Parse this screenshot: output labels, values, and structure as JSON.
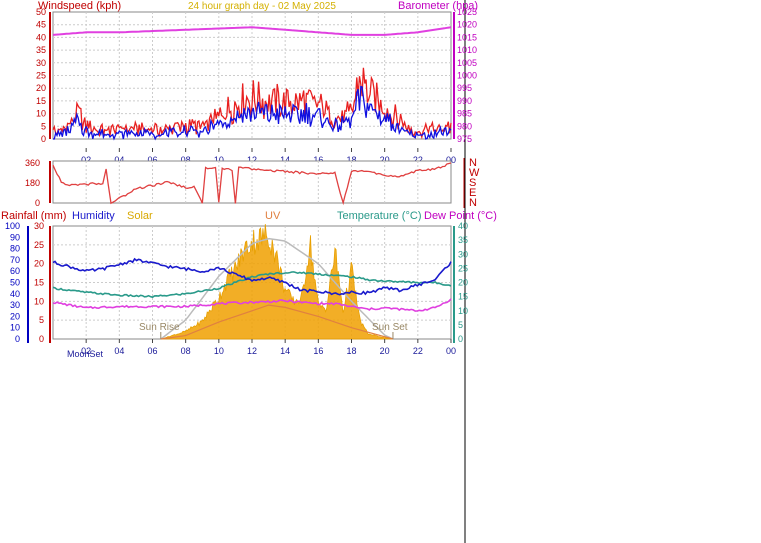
{
  "header": {
    "title": "24 hour graph day - 02 May 2025",
    "left_label": "Windspeed (kph)",
    "right_label": "Barometer (hpa)"
  },
  "colors": {
    "wind": "#e82020",
    "gust_avg": "#1010e0",
    "barometer": "#e040e0",
    "direction": "#e04040",
    "humidity": "#1a1acc",
    "temperature": "#2a9a8a",
    "dewpoint": "#e040e0",
    "solar": "#f0a000",
    "uv": "#e08040",
    "sun_curve": "#bbbbbb",
    "grid": "#cccccc",
    "axis_left": "#c00000",
    "axis_blue": "#0000c0",
    "axis_teal": "#2a9a8a"
  },
  "time_ticks": [
    "02",
    "04",
    "06",
    "08",
    "10",
    "12",
    "14",
    "16",
    "18",
    "20",
    "22",
    "00"
  ],
  "bottom_axis_extra": {
    "moon_set": "MoonSet"
  },
  "chart_data": [
    {
      "name": "wind_barometer",
      "type": "line",
      "xlim": [
        0,
        24
      ],
      "ylim_left": [
        0,
        50
      ],
      "ylim_right": [
        975,
        1025
      ],
      "left_ticks": [
        "50",
        "45",
        "40",
        "35",
        "30",
        "25",
        "20",
        "15",
        "10",
        "5",
        "0"
      ],
      "right_ticks": [
        "1025",
        "1020",
        "1015",
        "1010",
        "1005",
        "1000",
        "995",
        "990",
        "985",
        "980",
        "975"
      ],
      "series": [
        {
          "name": "Windspeed (kph)",
          "x": [
            0,
            1,
            1.5,
            2,
            3,
            4,
            5,
            6,
            7,
            8,
            9,
            10,
            11,
            12,
            13,
            14,
            15,
            16,
            17,
            18,
            18.5,
            19,
            19.5,
            20,
            21,
            21.5,
            22,
            23,
            24
          ],
          "values": [
            3,
            5,
            10,
            5,
            3,
            4,
            4,
            4,
            4,
            5,
            5,
            9,
            14,
            16,
            15,
            14,
            15,
            14,
            8,
            10,
            24,
            18,
            15,
            12,
            7,
            4,
            3,
            4,
            5
          ]
        },
        {
          "name": "Gust (kph)",
          "x": [
            0,
            1,
            1.5,
            2,
            3,
            4,
            5,
            6,
            7,
            8,
            9,
            10,
            11,
            12,
            13,
            14,
            15,
            16,
            17,
            18,
            18.5,
            19,
            19.5,
            20,
            21,
            21.5,
            22,
            23,
            24
          ],
          "values": [
            1,
            3,
            7,
            3,
            2,
            2,
            2,
            2,
            2,
            3,
            3,
            6,
            9,
            10,
            10,
            9,
            10,
            9,
            5,
            7,
            16,
            13,
            10,
            8,
            4,
            2,
            1,
            2,
            3
          ]
        },
        {
          "name": "Barometer (hpa)",
          "x": [
            0,
            2,
            4,
            6,
            8,
            10,
            12,
            14,
            16,
            18,
            20,
            22,
            24
          ],
          "values": [
            1016,
            1017,
            1017,
            1017.5,
            1018,
            1018.5,
            1019,
            1018,
            1017,
            1016,
            1016,
            1017,
            1019
          ]
        }
      ]
    },
    {
      "name": "wind_direction",
      "type": "line",
      "xlim": [
        0,
        24
      ],
      "ylim": [
        0,
        360
      ],
      "left_ticks": [
        "360",
        "180",
        "0"
      ],
      "right_labels": [
        "N",
        "W",
        "S",
        "E",
        "N"
      ],
      "series": [
        {
          "name": "Direction (deg)",
          "x": [
            0,
            0.5,
            1,
            2,
            3,
            3.2,
            3.5,
            5,
            7,
            8,
            8.5,
            9,
            9.2,
            9.8,
            10,
            10.2,
            10.8,
            11,
            11.2,
            11.8,
            12,
            14,
            16,
            17,
            17.2,
            17.5,
            18,
            19,
            20,
            21,
            22,
            23,
            24
          ],
          "values": [
            320,
            180,
            150,
            160,
            170,
            290,
            0,
            120,
            180,
            130,
            140,
            0,
            300,
            300,
            0,
            300,
            280,
            0,
            310,
            300,
            290,
            270,
            250,
            260,
            150,
            0,
            270,
            270,
            240,
            230,
            280,
            290,
            340
          ]
        }
      ]
    },
    {
      "name": "temp_humidity_solar",
      "type": "area",
      "xlim": [
        0,
        24
      ],
      "rainfall_ticks": [
        "30",
        "25",
        "20",
        "15",
        "10",
        "5",
        "0"
      ],
      "humidity_ticks": [
        "100",
        "90",
        "80",
        "70",
        "60",
        "50",
        "40",
        "30",
        "20",
        "10",
        "0"
      ],
      "temperature_ticks": [
        "40",
        "35",
        "30",
        "25",
        "20",
        "15",
        "10",
        "5",
        "0"
      ],
      "legend": {
        "rainfall": "Rainfall (mm)",
        "humidity": "Humidity",
        "solar": "Solar",
        "uv": "UV",
        "temperature": "Temperature (°C)",
        "dewpoint": "Dew Point (°C)"
      },
      "annotations": {
        "sun_rise": "Sun Rise",
        "sun_set": "Sun Set"
      },
      "series": [
        {
          "name": "Humidity (%)",
          "x": [
            0,
            1,
            2,
            3,
            4,
            5,
            6,
            7,
            8,
            9,
            10,
            11,
            12,
            13,
            14,
            15,
            16,
            17,
            18,
            19,
            20,
            21,
            22,
            23,
            24
          ],
          "values": [
            68,
            64,
            60,
            62,
            66,
            70,
            67,
            64,
            62,
            60,
            63,
            57,
            52,
            54,
            50,
            43,
            42,
            40,
            41,
            41,
            45,
            43,
            48,
            52,
            68
          ]
        },
        {
          "name": "Temperature (°C)",
          "x": [
            0,
            2,
            4,
            6,
            8,
            10,
            11,
            12,
            13,
            14,
            15,
            16,
            17,
            18,
            19,
            20,
            22,
            23,
            24
          ],
          "values": [
            18,
            16.5,
            15.5,
            15,
            16,
            18,
            20,
            22,
            23,
            23.5,
            23.5,
            23,
            22.5,
            22,
            21,
            20.5,
            20,
            20,
            19
          ]
        },
        {
          "name": "Dew Point (°C)",
          "x": [
            0,
            2,
            4,
            6,
            8,
            10,
            12,
            14,
            15,
            16,
            17,
            18,
            19,
            20,
            22,
            23,
            24
          ],
          "values": [
            13,
            11,
            11.5,
            11.5,
            11.5,
            12.5,
            13,
            13.5,
            13,
            12.5,
            12.5,
            11.5,
            10.5,
            11,
            10,
            11,
            14
          ]
        },
        {
          "name": "Solar (W/m²)",
          "x": [
            6.5,
            7,
            8,
            9,
            10,
            10.5,
            11,
            11.5,
            12,
            12.5,
            13,
            13.5,
            14,
            14.5,
            15,
            15.5,
            16,
            16.5,
            17,
            17.5,
            18,
            18.5,
            19,
            20,
            20.5
          ],
          "values": [
            0,
            20,
            60,
            140,
            330,
            470,
            560,
            700,
            780,
            800,
            830,
            640,
            390,
            300,
            320,
            770,
            260,
            250,
            700,
            220,
            560,
            150,
            40,
            10,
            0
          ]
        },
        {
          "name": "UV",
          "x": [
            6.5,
            8,
            10,
            12,
            13,
            14,
            16,
            18,
            20,
            20.5
          ],
          "values": [
            0,
            0.3,
            1.5,
            2.5,
            3,
            2.8,
            2,
            1,
            0.2,
            0
          ]
        },
        {
          "name": "Theoretical solar",
          "x": [
            6.5,
            8,
            10,
            12,
            13,
            14,
            16,
            18,
            20,
            20.5
          ],
          "values": [
            0,
            150,
            500,
            760,
            800,
            780,
            600,
            300,
            30,
            0
          ]
        }
      ]
    }
  ]
}
